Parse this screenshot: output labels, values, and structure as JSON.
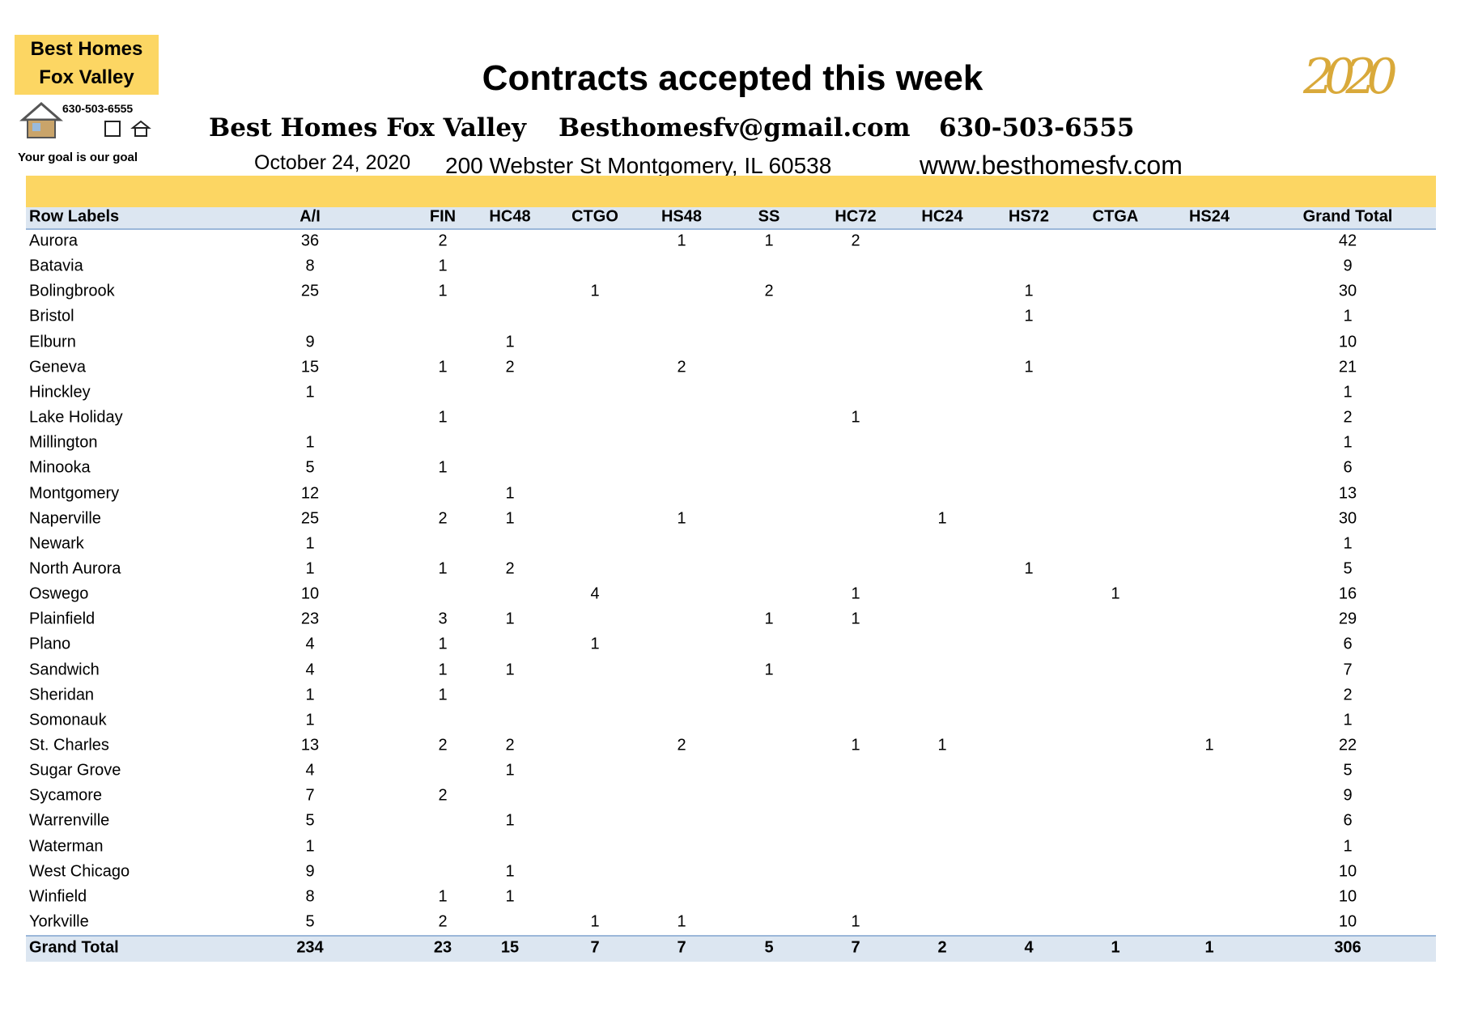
{
  "logo": {
    "line1": "Best Homes",
    "line2": "Fox Valley",
    "phone": "630-503-6555",
    "tagline": "Your goal is our goal"
  },
  "header": {
    "title": "Contracts accepted this week",
    "company": "Best Homes Fox Valley",
    "email": "Besthomesfv@gmail.com",
    "phone": "630-503-6555",
    "date": "October 24, 2020",
    "address": "200 Webster  St Montgomery, IL 60538",
    "website": "www.besthomesfv.com",
    "year": "2020"
  },
  "table": {
    "columns": [
      "Row Labels",
      "A/I",
      "FIN",
      "HC48",
      "CTGO",
      "HS48",
      "SS",
      "HC72",
      "HC24",
      "HS72",
      "CTGA",
      "HS24",
      "Grand Total"
    ],
    "rows": [
      [
        "Aurora",
        36,
        2,
        null,
        null,
        1,
        1,
        2,
        null,
        null,
        null,
        null,
        42
      ],
      [
        "Batavia",
        8,
        1,
        null,
        null,
        null,
        null,
        null,
        null,
        null,
        null,
        null,
        9
      ],
      [
        "Bolingbrook",
        25,
        1,
        null,
        1,
        null,
        2,
        null,
        null,
        1,
        null,
        null,
        30
      ],
      [
        "Bristol",
        null,
        null,
        null,
        null,
        null,
        null,
        null,
        null,
        1,
        null,
        null,
        1
      ],
      [
        "Elburn",
        9,
        null,
        1,
        null,
        null,
        null,
        null,
        null,
        null,
        null,
        null,
        10
      ],
      [
        "Geneva",
        15,
        1,
        2,
        null,
        2,
        null,
        null,
        null,
        1,
        null,
        null,
        21
      ],
      [
        "Hinckley",
        1,
        null,
        null,
        null,
        null,
        null,
        null,
        null,
        null,
        null,
        null,
        1
      ],
      [
        "Lake Holiday",
        null,
        1,
        null,
        null,
        null,
        null,
        1,
        null,
        null,
        null,
        null,
        2
      ],
      [
        "Millington",
        1,
        null,
        null,
        null,
        null,
        null,
        null,
        null,
        null,
        null,
        null,
        1
      ],
      [
        "Minooka",
        5,
        1,
        null,
        null,
        null,
        null,
        null,
        null,
        null,
        null,
        null,
        6
      ],
      [
        "Montgomery",
        12,
        null,
        1,
        null,
        null,
        null,
        null,
        null,
        null,
        null,
        null,
        13
      ],
      [
        "Naperville",
        25,
        2,
        1,
        null,
        1,
        null,
        null,
        1,
        null,
        null,
        null,
        30
      ],
      [
        "Newark",
        1,
        null,
        null,
        null,
        null,
        null,
        null,
        null,
        null,
        null,
        null,
        1
      ],
      [
        "North Aurora",
        1,
        1,
        2,
        null,
        null,
        null,
        null,
        null,
        1,
        null,
        null,
        5
      ],
      [
        "Oswego",
        10,
        null,
        null,
        4,
        null,
        null,
        1,
        null,
        null,
        1,
        null,
        16
      ],
      [
        "Plainfield",
        23,
        3,
        1,
        null,
        null,
        1,
        1,
        null,
        null,
        null,
        null,
        29
      ],
      [
        "Plano",
        4,
        1,
        null,
        1,
        null,
        null,
        null,
        null,
        null,
        null,
        null,
        6
      ],
      [
        "Sandwich",
        4,
        1,
        1,
        null,
        null,
        1,
        null,
        null,
        null,
        null,
        null,
        7
      ],
      [
        "Sheridan",
        1,
        1,
        null,
        null,
        null,
        null,
        null,
        null,
        null,
        null,
        null,
        2
      ],
      [
        "Somonauk",
        1,
        null,
        null,
        null,
        null,
        null,
        null,
        null,
        null,
        null,
        null,
        1
      ],
      [
        "St. Charles",
        13,
        2,
        2,
        null,
        2,
        null,
        1,
        1,
        null,
        null,
        1,
        22
      ],
      [
        "Sugar Grove",
        4,
        null,
        1,
        null,
        null,
        null,
        null,
        null,
        null,
        null,
        null,
        5
      ],
      [
        "Sycamore",
        7,
        2,
        null,
        null,
        null,
        null,
        null,
        null,
        null,
        null,
        null,
        9
      ],
      [
        "Warrenville",
        5,
        null,
        1,
        null,
        null,
        null,
        null,
        null,
        null,
        null,
        null,
        6
      ],
      [
        "Waterman",
        1,
        null,
        null,
        null,
        null,
        null,
        null,
        null,
        null,
        null,
        null,
        1
      ],
      [
        "West Chicago",
        9,
        null,
        1,
        null,
        null,
        null,
        null,
        null,
        null,
        null,
        null,
        10
      ],
      [
        "Winfield",
        8,
        1,
        1,
        null,
        null,
        null,
        null,
        null,
        null,
        null,
        null,
        10
      ],
      [
        "Yorkville",
        5,
        2,
        null,
        1,
        1,
        null,
        1,
        null,
        null,
        null,
        null,
        10
      ]
    ],
    "total": [
      "Grand Total",
      234,
      23,
      15,
      7,
      7,
      5,
      7,
      2,
      4,
      1,
      1,
      306
    ]
  }
}
